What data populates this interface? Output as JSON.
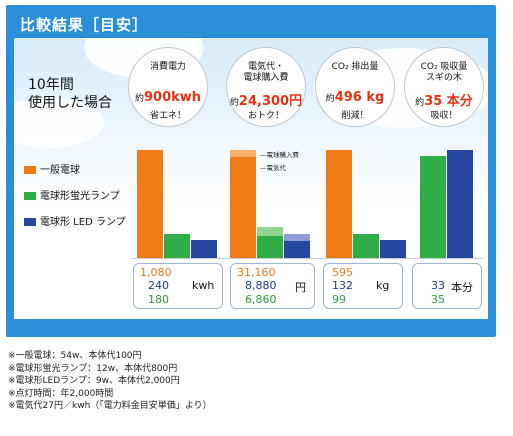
{
  "header": {
    "title": "比較結果［目安］"
  },
  "lead": {
    "line1": "10年間",
    "line2": "使用した場合"
  },
  "bubbles": [
    {
      "head1": "消費電力",
      "head2": "",
      "prefix": "約",
      "value": "900kwh",
      "foot": "省エネ！"
    },
    {
      "head1": "電気代・",
      "head2": "電球購入費",
      "prefix": "約",
      "value": "24,300円",
      "foot": "おトク！"
    },
    {
      "head1": "CO₂ 排出量",
      "head2": "",
      "prefix": "約",
      "value": "496 kg",
      "foot": "削減！"
    },
    {
      "head1": "CO₂ 吸収量",
      "head2": "スギの木",
      "prefix": "約",
      "value": "35 本分",
      "foot": "吸収！"
    }
  ],
  "legend": [
    {
      "label": "一般電球",
      "color": "#ee7b16"
    },
    {
      "label": "電球形蛍光ランプ",
      "color": "#2fae47"
    },
    {
      "label": "電球形 LED ランプ",
      "color": "#2547a0"
    }
  ],
  "stack_labels": {
    "purchase": "電球購入費",
    "electricity": "電気代"
  },
  "chart_data": [
    {
      "type": "bar",
      "title": "",
      "categories": [
        "一般電球",
        "電球形蛍光ランプ",
        "電球形 LED ランプ"
      ],
      "values": [
        1080,
        240,
        180
      ],
      "unit": "kwh"
    },
    {
      "type": "bar",
      "title": "",
      "categories": [
        "一般電球",
        "電球形蛍光ランプ",
        "電球形 LED ランプ"
      ],
      "series": [
        {
          "name": "電気代",
          "values": [
            29160,
            6480,
            4860
          ]
        },
        {
          "name": "電球購入費",
          "values": [
            2000,
            2400,
            2000
          ]
        }
      ],
      "totals": [
        31160,
        8880,
        6860
      ],
      "unit": "円"
    },
    {
      "type": "bar",
      "title": "",
      "categories": [
        "一般電球",
        "電球形蛍光ランプ",
        "電球形 LED ランプ"
      ],
      "values": [
        595,
        132,
        99
      ],
      "unit": "kg"
    },
    {
      "type": "bar",
      "title": "",
      "categories": [
        "電球形蛍光ランプ",
        "電球形 LED ランプ"
      ],
      "values": [
        33,
        35
      ],
      "unit": "本分"
    }
  ],
  "value_boxes": [
    {
      "v1": "1,080",
      "v2": "240",
      "v3": "180",
      "unit": "kwh"
    },
    {
      "v1": "31,160",
      "v2": "8,880",
      "v3": "6,860",
      "unit": "円"
    },
    {
      "v1": "595",
      "v2": "132",
      "v3": "99",
      "unit": "kg"
    },
    {
      "v1": "",
      "v2": "33",
      "v3": "35",
      "unit": "本分"
    }
  ],
  "notes": [
    "※一般電球：54w、本体代100円",
    "※電球形蛍光ランプ：12w、本体代800円",
    "※電球形LEDランプ：9w、本体代2,000円",
    "※点灯時間：年2,000時間",
    "※電気代27円／kwh（「電力料金目安単価」より）"
  ]
}
